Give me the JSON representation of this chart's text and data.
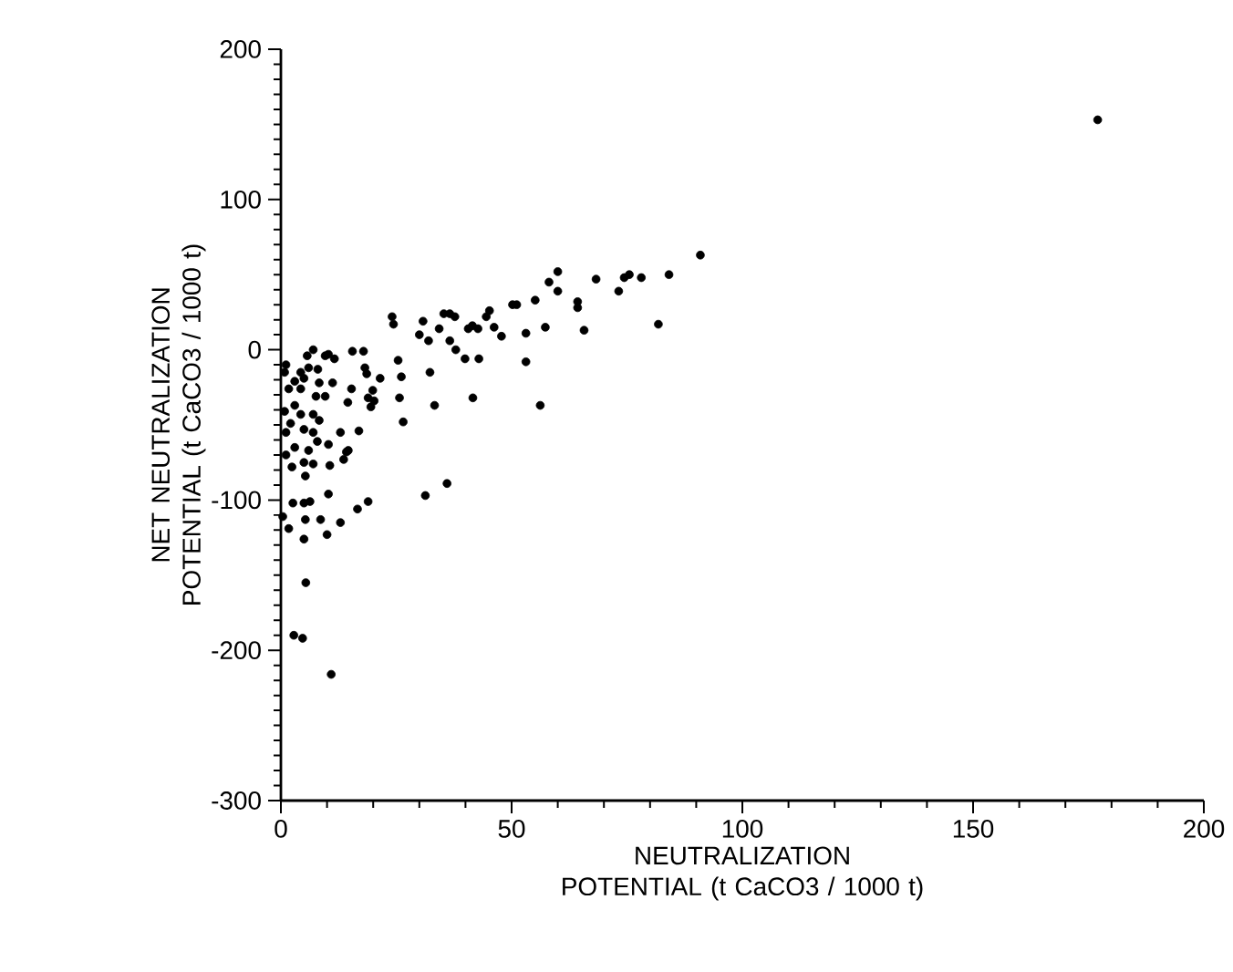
{
  "chart_data": {
    "type": "scatter",
    "xlabel": "NEUTRALIZATION POTENTIAL (t CaCO3 / 1000 t)",
    "ylabel": "NET NEUTRALIZATION POTENTIAL (t CaCO3 / 1000 t)",
    "xlim": [
      0,
      200
    ],
    "xticks": [
      0,
      50,
      100,
      150,
      200
    ],
    "ylim": [
      -300,
      200
    ],
    "yticks": [
      -300,
      -200,
      -100,
      0,
      100,
      200
    ],
    "marker": "circle",
    "grid": false,
    "series": [
      {
        "color": "#000000",
        "x": [
          60.0,
          58.1,
          60.0,
          68.3,
          73.2,
          64.3,
          64.3,
          55.1,
          51.1,
          50.2,
          45.2,
          44.5,
          46.2,
          47.8,
          57.3,
          53.1,
          65.7,
          53.1,
          56.2,
          41.5,
          40.6,
          42.7,
          37.7,
          35.3,
          36.6,
          34.3,
          30.8,
          30.0,
          32.0,
          36.6,
          37.9,
          39.9,
          42.9,
          32.3,
          33.3,
          41.6,
          24.1,
          24.4,
          25.4,
          26.1,
          25.7,
          26.5,
          21.5,
          19.9,
          18.9,
          20.2,
          19.5,
          15.5,
          17.9,
          18.2,
          18.6,
          15.3,
          14.5,
          16.9,
          12.9,
          14.6,
          10.3,
          11.6,
          9.6,
          7.0,
          5.7,
          6.0,
          8.0,
          4.3,
          5.0,
          8.3,
          11.2,
          3.0,
          1.1,
          0.8,
          1.7,
          4.3,
          7.6,
          9.6,
          3.0,
          0.8,
          4.3,
          7.0,
          8.3,
          2.1,
          5.0,
          7.0,
          1.1,
          7.9,
          10.3,
          3.0,
          6.0,
          14.2,
          13.6,
          1.1,
          2.4,
          5.0,
          7.0,
          10.6,
          5.3,
          10.3,
          2.6,
          5.0,
          6.3,
          0.4,
          1.7,
          5.3,
          8.6,
          12.9,
          10.0,
          5.0,
          16.6,
          18.9,
          31.3,
          36.0,
          5.4,
          2.8,
          4.7,
          10.9,
          177.0,
          90.9,
          84.1,
          78.1,
          75.5,
          74.4,
          81.8
        ],
        "values": [
          52,
          45,
          39,
          47,
          39,
          32,
          28,
          33,
          30,
          30,
          26,
          22,
          15,
          9,
          15,
          11,
          13,
          -8,
          -37,
          16,
          14,
          14,
          22,
          24,
          24,
          14,
          19,
          10,
          6,
          6,
          0,
          -6,
          -6,
          -15,
          -37,
          -32,
          22,
          17,
          -7,
          -18,
          -32,
          -48,
          -19,
          -27,
          -32,
          -34,
          -38,
          -1,
          -1,
          -12,
          -16,
          -26,
          -35,
          -54,
          -55,
          -67,
          -3,
          -6,
          -4,
          0,
          -4,
          -12,
          -13,
          -15,
          -19,
          -22,
          -22,
          -21,
          -10,
          -15,
          -26,
          -26,
          -31,
          -31,
          -37,
          -41,
          -43,
          -43,
          -47,
          -49,
          -53,
          -55,
          -55,
          -61,
          -63,
          -65,
          -67,
          -68,
          -73,
          -70,
          -78,
          -75,
          -76,
          -77,
          -84,
          -96,
          -102,
          -102,
          -101,
          -111,
          -119,
          -113,
          -113,
          -115,
          -123,
          -126,
          -106,
          -101,
          -97,
          -89,
          -155,
          -190,
          -192,
          -216,
          153,
          63,
          50,
          48,
          50,
          48,
          17
        ]
      }
    ]
  }
}
